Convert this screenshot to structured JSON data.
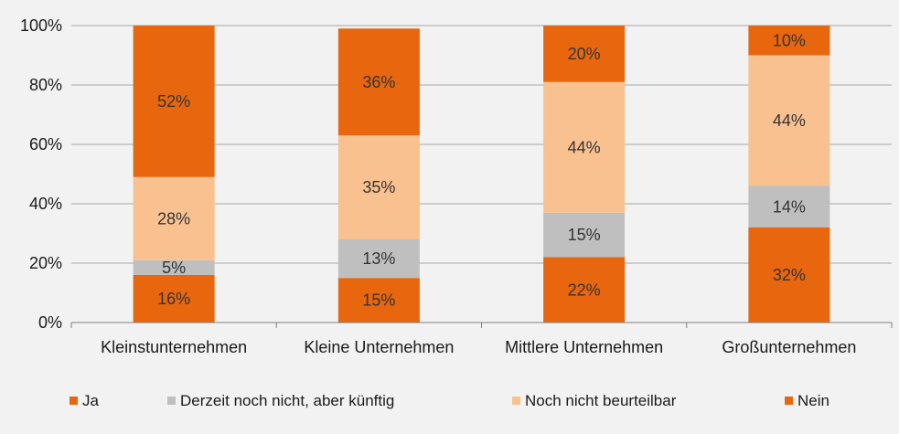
{
  "chart_data": {
    "type": "bar",
    "stacked": true,
    "percent": true,
    "categories": [
      "Kleinstunternehmen",
      "Kleine Unternehmen",
      "Mittlere Unternehmen",
      "Großunternehmen"
    ],
    "series": [
      {
        "name": "Ja",
        "values": [
          16,
          15,
          22,
          32
        ],
        "labels": [
          "16%",
          "15%",
          "22%",
          "32%"
        ],
        "color": "#e8660e"
      },
      {
        "name": "Derzeit noch nicht, aber künftig",
        "values": [
          5,
          13,
          15,
          14
        ],
        "labels": [
          "5%",
          "13%",
          "15%",
          "14%"
        ],
        "color": "#bfbfbf"
      },
      {
        "name": "Noch nicht beurteilbar",
        "values": [
          28,
          35,
          44,
          44
        ],
        "labels": [
          "28%",
          "35%",
          "44%",
          "44%"
        ],
        "color": "#f9c190"
      },
      {
        "name": "Nein",
        "values": [
          52,
          36,
          20,
          10
        ],
        "labels": [
          "52%",
          "36%",
          "20%",
          "10%"
        ],
        "color": "#e8660e"
      }
    ],
    "y_ticks": [
      "0%",
      "20%",
      "40%",
      "60%",
      "80%",
      "100%"
    ],
    "ylim": [
      0,
      100
    ],
    "grid": true,
    "legend_position": "bottom"
  }
}
